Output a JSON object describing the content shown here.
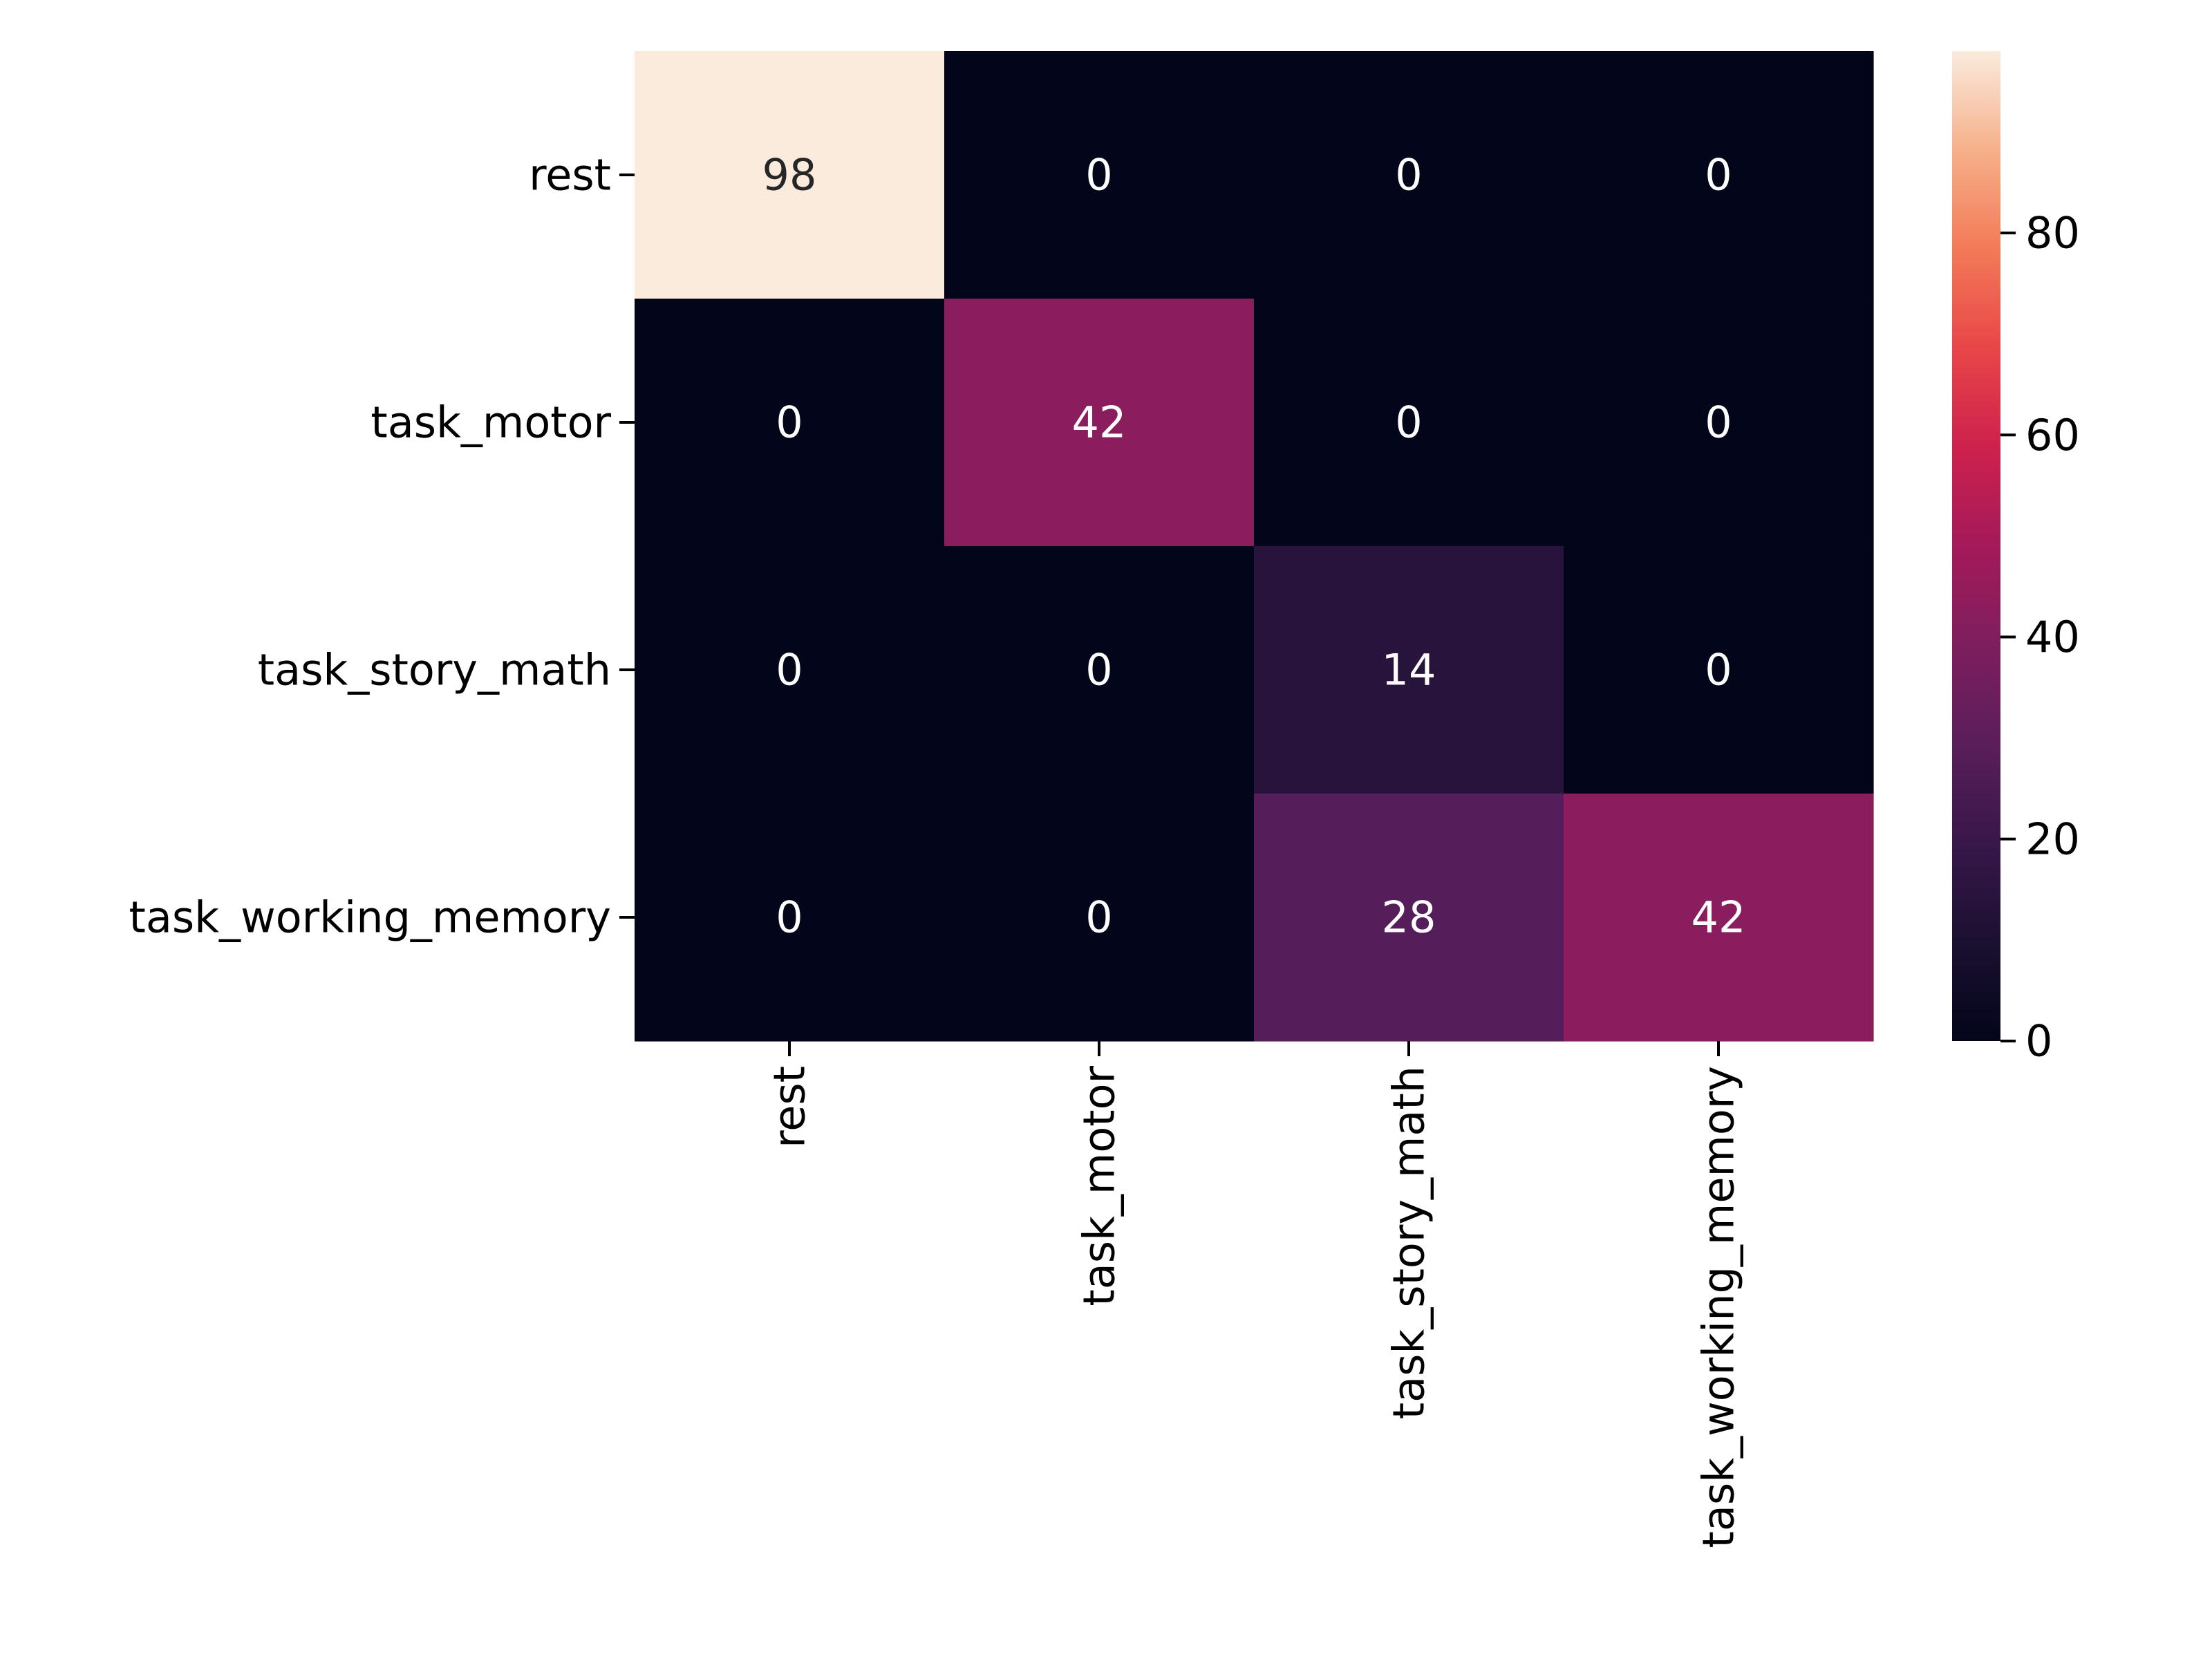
{
  "chart_data": {
    "type": "heatmap",
    "title": "",
    "xlabel": "",
    "ylabel": "",
    "row_labels": [
      "rest",
      "task_motor",
      "task_story_math",
      "task_working_memory"
    ],
    "col_labels": [
      "rest",
      "task_motor",
      "task_story_math",
      "task_working_memory"
    ],
    "values": [
      [
        98,
        0,
        0,
        0
      ],
      [
        0,
        42,
        0,
        0
      ],
      [
        0,
        0,
        14,
        0
      ],
      [
        0,
        0,
        28,
        42
      ]
    ],
    "colorbar": {
      "min": 0,
      "max": 98,
      "ticks": [
        0,
        20,
        40,
        60,
        80
      ],
      "colormap": "rocket"
    },
    "annotations": true
  }
}
